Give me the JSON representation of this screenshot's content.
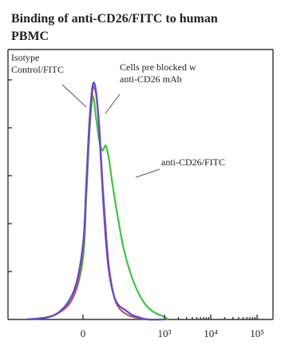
{
  "chart_data": {
    "type": "line",
    "title": "Binding of anti-CD26/FITC to human PBMC",
    "title_lines": [
      "Binding of anti-CD26/FITC to human",
      "PBMC"
    ],
    "xlabel": "",
    "ylabel": "",
    "x_scale": "biexponential",
    "x_ticks": [
      "0",
      "10³",
      "10⁴",
      "10⁵"
    ],
    "x_tick_values": [
      0,
      1000,
      10000,
      100000
    ],
    "xlim": [
      -300,
      200000
    ],
    "ylim": [
      0,
      1.02
    ],
    "grid": false,
    "legend": "none",
    "annotations": [
      {
        "text_lines": [
          "Isotype",
          "Control/FITC"
        ],
        "target_series": 0
      },
      {
        "text_lines": [
          "Cells pre blocked w",
          "anti-CD26 mAb"
        ],
        "target_series": 1
      },
      {
        "text_lines": [
          "anti-CD26/FITC"
        ],
        "target_series": 2
      }
    ],
    "series": [
      {
        "color": "#c0506e",
        "x": [
          -300,
          -150,
          -50,
          0,
          40,
          80,
          120,
          160,
          200,
          240,
          280,
          320,
          380,
          440,
          520,
          600,
          700,
          800,
          1000
        ],
        "y": [
          0.0,
          0.02,
          0.1,
          0.3,
          0.55,
          0.82,
          0.98,
          0.96,
          0.82,
          0.58,
          0.38,
          0.22,
          0.1,
          0.05,
          0.025,
          0.012,
          0.005,
          0.0,
          0.0
        ]
      },
      {
        "color": "#5b4fc8",
        "x": [
          -300,
          -150,
          -50,
          0,
          40,
          80,
          120,
          160,
          200,
          240,
          280,
          320,
          380,
          440,
          520,
          600,
          700,
          800,
          1000
        ],
        "y": [
          0.0,
          0.02,
          0.12,
          0.32,
          0.58,
          0.85,
          1.0,
          0.97,
          0.8,
          0.55,
          0.34,
          0.2,
          0.1,
          0.06,
          0.04,
          0.02,
          0.008,
          0.0,
          0.0
        ]
      },
      {
        "color": "#3ec43e",
        "x": [
          -300,
          -150,
          -50,
          0,
          40,
          80,
          120,
          160,
          200,
          240,
          280,
          320,
          360,
          420,
          500,
          600,
          700,
          800,
          900,
          1000,
          1200
        ],
        "y": [
          0.0,
          0.02,
          0.1,
          0.26,
          0.52,
          0.8,
          0.95,
          0.86,
          0.76,
          0.72,
          0.74,
          0.68,
          0.58,
          0.45,
          0.3,
          0.18,
          0.1,
          0.05,
          0.025,
          0.012,
          0.0
        ]
      }
    ]
  }
}
